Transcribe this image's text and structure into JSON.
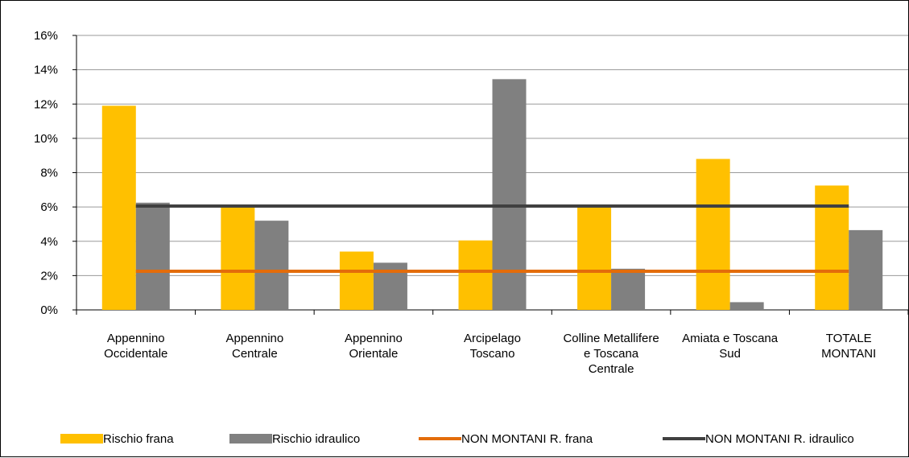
{
  "chart_data": {
    "type": "bar",
    "title": "",
    "xlabel": "",
    "ylabel": "",
    "ylim": [
      0,
      16
    ],
    "y_ticks": [
      "0%",
      "2%",
      "4%",
      "6%",
      "8%",
      "10%",
      "12%",
      "14%",
      "16%"
    ],
    "grid": true,
    "categories": [
      [
        "Appennino",
        "Occidentale"
      ],
      [
        "Appennino",
        "Centrale"
      ],
      [
        "Appennino",
        "Orientale"
      ],
      [
        "Arcipelago",
        "Toscano"
      ],
      [
        "Colline Metallifere",
        "e Toscana",
        "Centrale"
      ],
      [
        "Amiata e Toscana",
        "Sud"
      ],
      [
        "TOTALE",
        "MONTANI"
      ]
    ],
    "series": [
      {
        "name": "Rischio frana",
        "type": "bar",
        "color": "#FFC000",
        "values": [
          11.9,
          6.0,
          3.4,
          4.05,
          6.0,
          8.8,
          7.25
        ]
      },
      {
        "name": "Rischio idraulico",
        "type": "bar",
        "color": "#808080",
        "values": [
          6.25,
          5.2,
          2.75,
          13.45,
          2.4,
          0.45,
          4.65
        ]
      },
      {
        "name": "NON MONTANI  R. frana",
        "type": "line",
        "color": "#E36C0A",
        "values": [
          2.25,
          2.25,
          2.25,
          2.25,
          2.25,
          2.25,
          2.25
        ]
      },
      {
        "name": "NON MONTANI R. idraulico",
        "type": "line",
        "color": "#404040",
        "values": [
          6.05,
          6.05,
          6.05,
          6.05,
          6.05,
          6.05,
          6.05
        ]
      }
    ],
    "legend_position": "bottom"
  }
}
